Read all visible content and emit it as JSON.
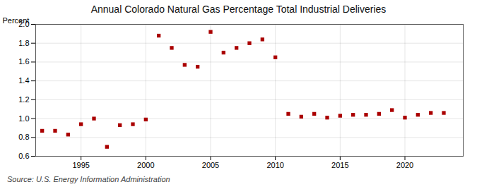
{
  "chart_data": {
    "type": "scatter",
    "title": "Annual Colorado Natural Gas Percentage Total Industrial Deliveries",
    "ylabel": "Percent",
    "source": "Source: U.S. Energy Information Administration",
    "x": [
      1992,
      1993,
      1994,
      1995,
      1996,
      1997,
      1998,
      1999,
      2000,
      2001,
      2002,
      2003,
      2004,
      2005,
      2006,
      2007,
      2008,
      2009,
      2010,
      2011,
      2012,
      2013,
      2014,
      2015,
      2016,
      2017,
      2018,
      2019,
      2020,
      2021,
      2022,
      2023
    ],
    "values": [
      0.87,
      0.87,
      0.83,
      0.94,
      1.0,
      0.7,
      0.93,
      0.94,
      0.99,
      1.88,
      1.75,
      1.57,
      1.55,
      1.92,
      1.7,
      1.75,
      1.8,
      1.84,
      1.65,
      1.05,
      1.02,
      1.05,
      1.01,
      1.03,
      1.04,
      1.04,
      1.05,
      1.09,
      1.01,
      1.04,
      1.06,
      1.06
    ],
    "color": "#aa0000",
    "marker": "square",
    "xlim": [
      1991.5,
      2024.5
    ],
    "ylim": [
      0.6,
      2.0
    ],
    "xticks": [
      1995,
      2000,
      2005,
      2010,
      2015,
      2020
    ],
    "yticks": [
      0.6,
      0.8,
      {
        "value": 1.0,
        "label": "1.0"
      },
      1.2,
      1.4,
      1.6,
      1.8,
      {
        "value": 2.0,
        "label": "2.0"
      }
    ],
    "grid": true
  }
}
